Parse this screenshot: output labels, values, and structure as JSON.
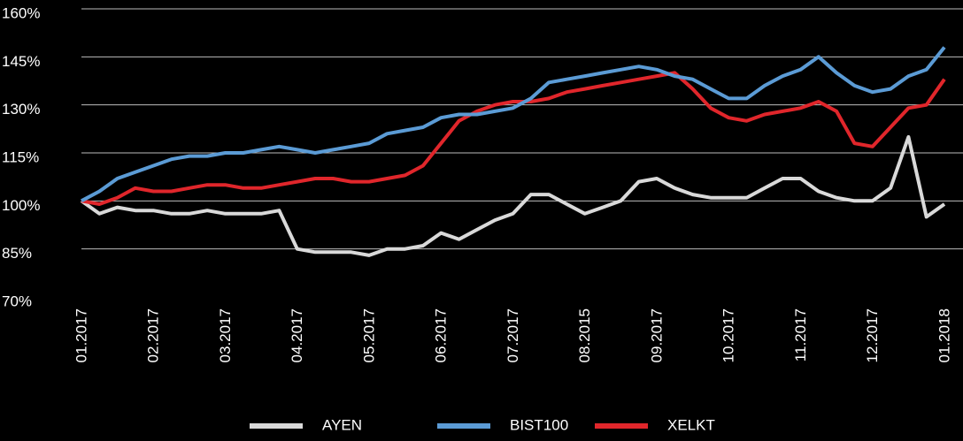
{
  "chart_data": {
    "type": "line",
    "categories": [
      "01.2017",
      null,
      null,
      null,
      "02.2017",
      null,
      null,
      null,
      "03.2017",
      null,
      null,
      null,
      "04.2017",
      null,
      null,
      null,
      "05.2017",
      null,
      null,
      null,
      "06.2017",
      null,
      null,
      null,
      "07.2017",
      null,
      null,
      null,
      "08.2015",
      null,
      null,
      null,
      "09.2017",
      null,
      null,
      null,
      "10.2017",
      null,
      null,
      null,
      "11.2017",
      null,
      null,
      null,
      "12.2017",
      null,
      null,
      null,
      "01.2018"
    ],
    "series": [
      {
        "name": "AYEN",
        "color": "#d9d9d9",
        "values": [
          100,
          96,
          98,
          97,
          97,
          96,
          96,
          97,
          96,
          96,
          96,
          97,
          85,
          84,
          84,
          84,
          83,
          85,
          85,
          86,
          90,
          88,
          91,
          94,
          96,
          102,
          102,
          99,
          96,
          98,
          100,
          106,
          107,
          104,
          102,
          101,
          101,
          101,
          104,
          107,
          107,
          103,
          101,
          100,
          100,
          104,
          120,
          95,
          99
        ]
      },
      {
        "name": "BIST100",
        "color": "#5b9bd5",
        "values": [
          100,
          103,
          107,
          109,
          111,
          113,
          114,
          114,
          115,
          115,
          116,
          117,
          116,
          115,
          116,
          117,
          118,
          121,
          122,
          123,
          126,
          127,
          127,
          128,
          129,
          132,
          137,
          138,
          139,
          140,
          141,
          142,
          141,
          139,
          138,
          135,
          132,
          132,
          136,
          139,
          141,
          145,
          140,
          136,
          134,
          135,
          139,
          141,
          148
        ]
      },
      {
        "name": "XELKT",
        "color": "#e0262b",
        "values": [
          100,
          99,
          101,
          104,
          103,
          103,
          104,
          105,
          105,
          104,
          104,
          105,
          106,
          107,
          107,
          106,
          106,
          107,
          108,
          111,
          118,
          125,
          128,
          130,
          131,
          131,
          132,
          134,
          135,
          136,
          137,
          138,
          139,
          140,
          135,
          129,
          126,
          125,
          127,
          128,
          129,
          131,
          128,
          118,
          117,
          123,
          129,
          130,
          138
        ]
      }
    ],
    "ylim": [
      70,
      160
    ],
    "yticks": [
      {
        "value": 70,
        "label": "70%"
      },
      {
        "value": 85,
        "label": "85%"
      },
      {
        "value": 100,
        "label": "100%"
      },
      {
        "value": 115,
        "label": "115%"
      },
      {
        "value": 130,
        "label": "130%"
      },
      {
        "value": 145,
        "label": "145%"
      },
      {
        "value": 160,
        "label": "160%"
      }
    ],
    "grid": true
  }
}
